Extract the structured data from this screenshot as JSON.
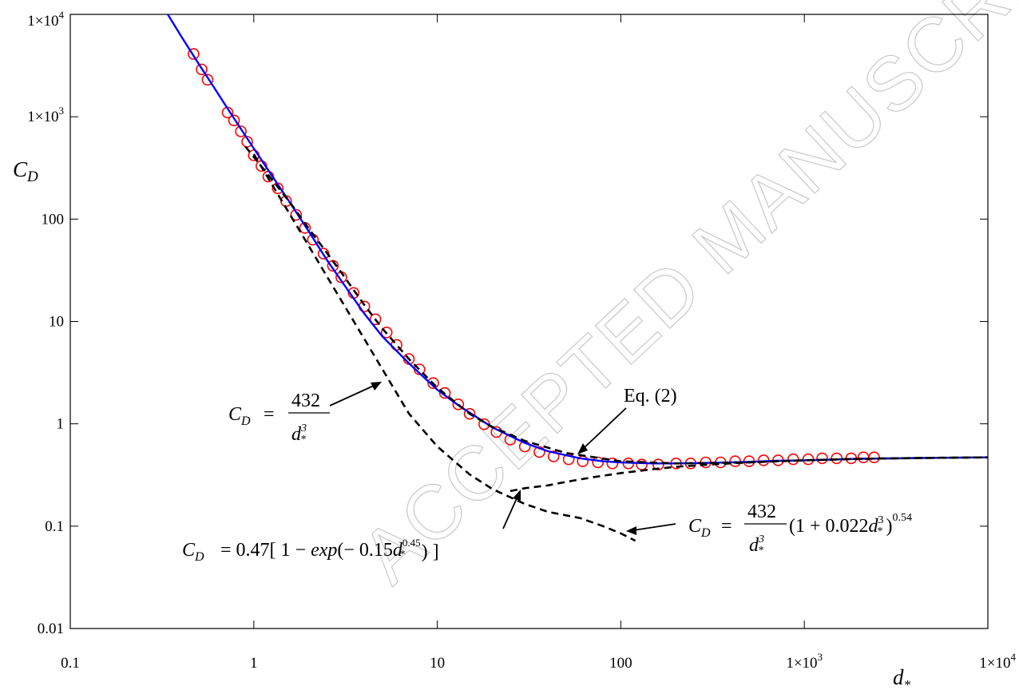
{
  "watermark": "ACCEPTED MANUSCRIPT",
  "chart_data": {
    "type": "scatter",
    "xscale": "log",
    "yscale": "log",
    "xlim": [
      0.1,
      10000
    ],
    "ylim": [
      0.01,
      10000
    ],
    "grid": false,
    "xlabel": "d*",
    "ylabel": "C_D",
    "x_tick_values": [
      0.1,
      1,
      10,
      100,
      1000,
      10000
    ],
    "y_tick_values": [
      0.01,
      0.1,
      1,
      10,
      100,
      1000,
      10000
    ],
    "x_tick_labels": [
      {
        "base": "0.1",
        "sup": ""
      },
      {
        "base": "1",
        "sup": ""
      },
      {
        "base": "10",
        "sup": ""
      },
      {
        "base": "100",
        "sup": ""
      },
      {
        "base": "1×10",
        "sup": "3"
      },
      {
        "base": "1×10",
        "sup": "4"
      }
    ],
    "y_tick_labels": [
      {
        "base": "0.01",
        "sup": ""
      },
      {
        "base": "0.1",
        "sup": ""
      },
      {
        "base": "1",
        "sup": ""
      },
      {
        "base": "10",
        "sup": ""
      },
      {
        "base": "100",
        "sup": ""
      },
      {
        "base": "1×10",
        "sup": "3"
      },
      {
        "base": "1×10",
        "sup": "4"
      }
    ],
    "series": [
      {
        "name": "",
        "kind": "markers",
        "marker": "open-circle",
        "color": "#ff0000",
        "x": [
          0.47,
          0.52,
          0.56,
          0.72,
          0.78,
          0.85,
          0.92,
          1.0,
          1.1,
          1.2,
          1.35,
          1.5,
          1.7,
          1.9,
          2.1,
          2.4,
          2.7,
          3.0,
          3.5,
          4.0,
          4.6,
          5.3,
          6.0,
          7.0,
          8.0,
          9.5,
          11,
          13,
          15,
          18,
          21,
          25,
          30,
          36,
          43,
          52,
          62,
          75,
          90,
          110,
          130,
          160,
          200,
          240,
          290,
          350,
          420,
          500,
          600,
          720,
          870,
          1050,
          1250,
          1500,
          1800,
          2100,
          2400
        ],
        "y": [
          4100,
          2900,
          2300,
          1100,
          920,
          720,
          570,
          420,
          330,
          260,
          200,
          150,
          110,
          82,
          63,
          46,
          35,
          27,
          19,
          14,
          10.5,
          7.8,
          5.9,
          4.3,
          3.4,
          2.5,
          2.0,
          1.55,
          1.25,
          0.99,
          0.83,
          0.7,
          0.6,
          0.53,
          0.48,
          0.45,
          0.43,
          0.42,
          0.41,
          0.41,
          0.4,
          0.4,
          0.41,
          0.41,
          0.42,
          0.42,
          0.43,
          0.43,
          0.44,
          0.44,
          0.45,
          0.45,
          0.46,
          0.46,
          0.46,
          0.47,
          0.47
        ]
      },
      {
        "name": "",
        "kind": "line",
        "color": "#0000ff",
        "x": [
          0.34,
          0.4,
          0.5,
          0.6,
          0.7,
          0.8,
          1.0,
          1.2,
          1.5,
          2.0,
          2.5,
          3.0,
          4.0,
          5.0,
          7.0,
          10,
          13,
          20,
          30,
          40,
          60,
          80,
          100,
          150,
          200,
          300,
          500,
          700,
          1000,
          2000,
          5000,
          10000
        ],
        "y": [
          10000,
          6200,
          3300,
          2000,
          1300,
          900,
          490,
          300,
          165,
          75,
          40,
          25,
          11.9,
          7.2,
          3.9,
          2.15,
          1.52,
          0.92,
          0.65,
          0.54,
          0.46,
          0.43,
          0.42,
          0.41,
          0.41,
          0.415,
          0.425,
          0.435,
          0.44,
          0.455,
          0.465,
          0.47
        ]
      },
      {
        "name": "",
        "kind": "dashed",
        "color": "#000000",
        "x": [
          1.0,
          1.5,
          2.0,
          3.0,
          4.0,
          5.0,
          6.0,
          7.0,
          10,
          15,
          20,
          30,
          40,
          60,
          80,
          100,
          120
        ],
        "y": [
          432,
          128,
          54,
          16,
          6.75,
          3.46,
          2.0,
          1.26,
          0.6,
          0.32,
          0.23,
          0.165,
          0.138,
          0.12,
          0.1,
          0.085,
          0.072
        ]
      },
      {
        "name": "",
        "kind": "dashed",
        "color": "#000000",
        "x": [
          25,
          30,
          40,
          50,
          70,
          100,
          150,
          200,
          300,
          500,
          700,
          1000,
          2000,
          5000,
          10000
        ],
        "y": [
          0.22,
          0.235,
          0.25,
          0.27,
          0.3,
          0.33,
          0.36,
          0.38,
          0.4,
          0.42,
          0.43,
          0.44,
          0.455,
          0.465,
          0.47
        ]
      },
      {
        "name": "",
        "kind": "dashed",
        "color": "#000000",
        "x": [
          0.9,
          1.2,
          1.6,
          2.0,
          2.5,
          3.0,
          4.0,
          5.0,
          7.0,
          10,
          15,
          20,
          30,
          50,
          100,
          200,
          500,
          1000,
          2000,
          5000,
          10000
        ],
        "y": [
          510,
          270,
          140,
          80,
          47,
          30,
          14.5,
          8.6,
          4.3,
          2.25,
          1.25,
          0.93,
          0.68,
          0.52,
          0.43,
          0.41,
          0.42,
          0.44,
          0.455,
          0.465,
          0.47
        ]
      }
    ],
    "annotations": [
      {
        "id": "eq-simple",
        "lead": "C",
        "sub": "D",
        "eq": " = ",
        "num": "432",
        "den": "d",
        "den_sup": "3",
        "den_sub": "*"
      },
      {
        "id": "eq-ref",
        "text": "Eq. (2)"
      },
      {
        "id": "eq-exp",
        "text": "C_D = 0.47[ 1 − exp(− 0.15d*^0.45) ]"
      },
      {
        "id": "eq-full",
        "text": "C_D = (432/d*^3)(1 + 0.022d*^3)^0.54"
      }
    ]
  }
}
